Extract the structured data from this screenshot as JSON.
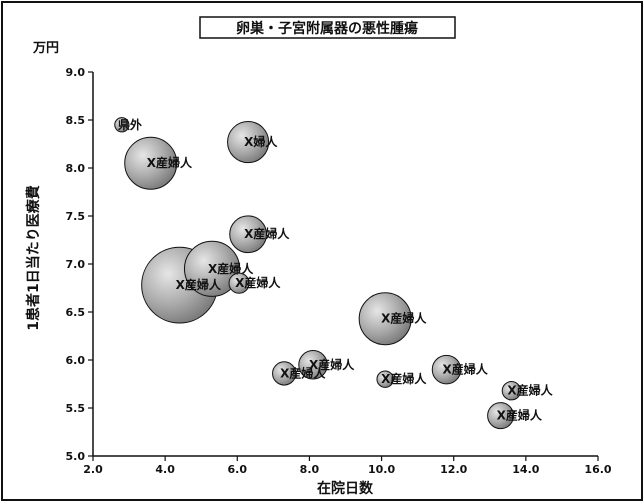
{
  "chart_data": {
    "type": "scatter",
    "title": "卵巣・子宮附属器の悪性腫瘍",
    "xlabel": "在院日数",
    "ylabel": "1患者1日当たり医療費",
    "yunit": "万円",
    "xlim": [
      2.0,
      16.0
    ],
    "ylim": [
      5.0,
      9.0
    ],
    "xticks": [
      "2.0",
      "4.0",
      "6.0",
      "8.0",
      "10.0",
      "12.0",
      "14.0",
      "16.0"
    ],
    "yticks": [
      "5.0",
      "5.5",
      "6.0",
      "6.5",
      "7.0",
      "7.5",
      "8.0",
      "8.5",
      "9.0"
    ],
    "grid": false,
    "points": [
      {
        "label": "県外",
        "x": 2.8,
        "y": 8.45,
        "size": 0.3
      },
      {
        "label": "X婦人",
        "x": 6.3,
        "y": 8.27,
        "size": 2.5
      },
      {
        "label": "X産婦人",
        "x": 3.6,
        "y": 8.05,
        "size": 4.0
      },
      {
        "label": "X産婦人",
        "x": 6.3,
        "y": 7.31,
        "size": 2.0
      },
      {
        "label": "X産婦人",
        "x": 5.3,
        "y": 6.95,
        "size": 4.5
      },
      {
        "label": "X産婦人",
        "x": 4.4,
        "y": 6.78,
        "size": 8.5
      },
      {
        "label": "X産婦人",
        "x": 6.05,
        "y": 6.8,
        "size": 0.6
      },
      {
        "label": "X産婦人",
        "x": 10.1,
        "y": 6.43,
        "size": 4.0
      },
      {
        "label": "X産婦人",
        "x": 8.1,
        "y": 5.95,
        "size": 1.2
      },
      {
        "label": "X産婦人",
        "x": 7.3,
        "y": 5.86,
        "size": 0.8
      },
      {
        "label": "X産婦人",
        "x": 10.1,
        "y": 5.8,
        "size": 0.4
      },
      {
        "label": "X産婦人",
        "x": 11.8,
        "y": 5.9,
        "size": 1.2
      },
      {
        "label": "X産婦人",
        "x": 13.6,
        "y": 5.68,
        "size": 0.5
      },
      {
        "label": "X産婦人",
        "x": 13.3,
        "y": 5.42,
        "size": 1.0
      }
    ],
    "colors": {
      "bubble": "#a8a8a8",
      "stroke": "#111111"
    }
  }
}
